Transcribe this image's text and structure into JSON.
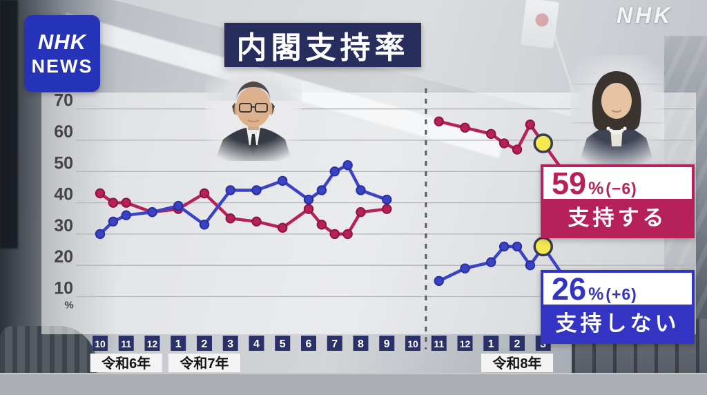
{
  "branding": {
    "logo_line1": "NHK",
    "logo_line2": "NEWS",
    "corner_logo": "NHK"
  },
  "title": "内閣支持率",
  "chart_data": {
    "type": "line",
    "title": "内閣支持率",
    "unit_label": "%",
    "y_ticks": [
      70,
      60,
      50,
      40,
      30,
      20,
      10
    ],
    "ylim": [
      5,
      75
    ],
    "grid": true,
    "month_labels": [
      "10",
      "11",
      "12",
      "1",
      "2",
      "3",
      "4",
      "5",
      "6",
      "7",
      "8",
      "9",
      "10",
      "11",
      "12",
      "1",
      "2",
      "3"
    ],
    "era_labels": [
      {
        "label": "令和6年",
        "center_index": 1
      },
      {
        "label": "令和7年",
        "center_index": 4
      },
      {
        "label": "令和8年",
        "center_index": 16
      }
    ],
    "divider_index": 12.5,
    "series": [
      {
        "name": "支持する",
        "color": "#b7215a",
        "edge": "#8e1340",
        "highlight_last": true,
        "points": [
          [
            0,
            43
          ],
          [
            0.5,
            40
          ],
          [
            1,
            40
          ],
          [
            2,
            37
          ],
          [
            3,
            38
          ],
          [
            4,
            43
          ],
          [
            5,
            35
          ],
          [
            6,
            34
          ],
          [
            7,
            32
          ],
          [
            8,
            38
          ],
          [
            8.5,
            33
          ],
          [
            9,
            30
          ],
          [
            9.5,
            30
          ],
          [
            10,
            37
          ],
          [
            11,
            38
          ],
          [
            13,
            66
          ],
          [
            14,
            64
          ],
          [
            15,
            62
          ],
          [
            15.5,
            59
          ],
          [
            16,
            57
          ],
          [
            16.5,
            65
          ],
          [
            17,
            59
          ]
        ]
      },
      {
        "name": "支持しない",
        "color": "#3a43c6",
        "edge": "#282f9e",
        "highlight_last": true,
        "points": [
          [
            0,
            30
          ],
          [
            0.5,
            34
          ],
          [
            1,
            36
          ],
          [
            2,
            37
          ],
          [
            3,
            39
          ],
          [
            4,
            33
          ],
          [
            5,
            44
          ],
          [
            6,
            44
          ],
          [
            7,
            47
          ],
          [
            8,
            41
          ],
          [
            8.5,
            44
          ],
          [
            9,
            50
          ],
          [
            9.5,
            52
          ],
          [
            10,
            44
          ],
          [
            11,
            41
          ],
          [
            13,
            15
          ],
          [
            14,
            19
          ],
          [
            15,
            21
          ],
          [
            15.5,
            26
          ],
          [
            16,
            26
          ],
          [
            16.5,
            20
          ],
          [
            17,
            26
          ]
        ]
      }
    ],
    "highlight_color": "#f3e94e"
  },
  "callouts": {
    "approve": {
      "value": "59",
      "unit": "%",
      "change": "(−6)",
      "label": "支持する"
    },
    "disapprove": {
      "value": "26",
      "unit": "%",
      "change": "(+6)",
      "label": "支持しない"
    }
  }
}
